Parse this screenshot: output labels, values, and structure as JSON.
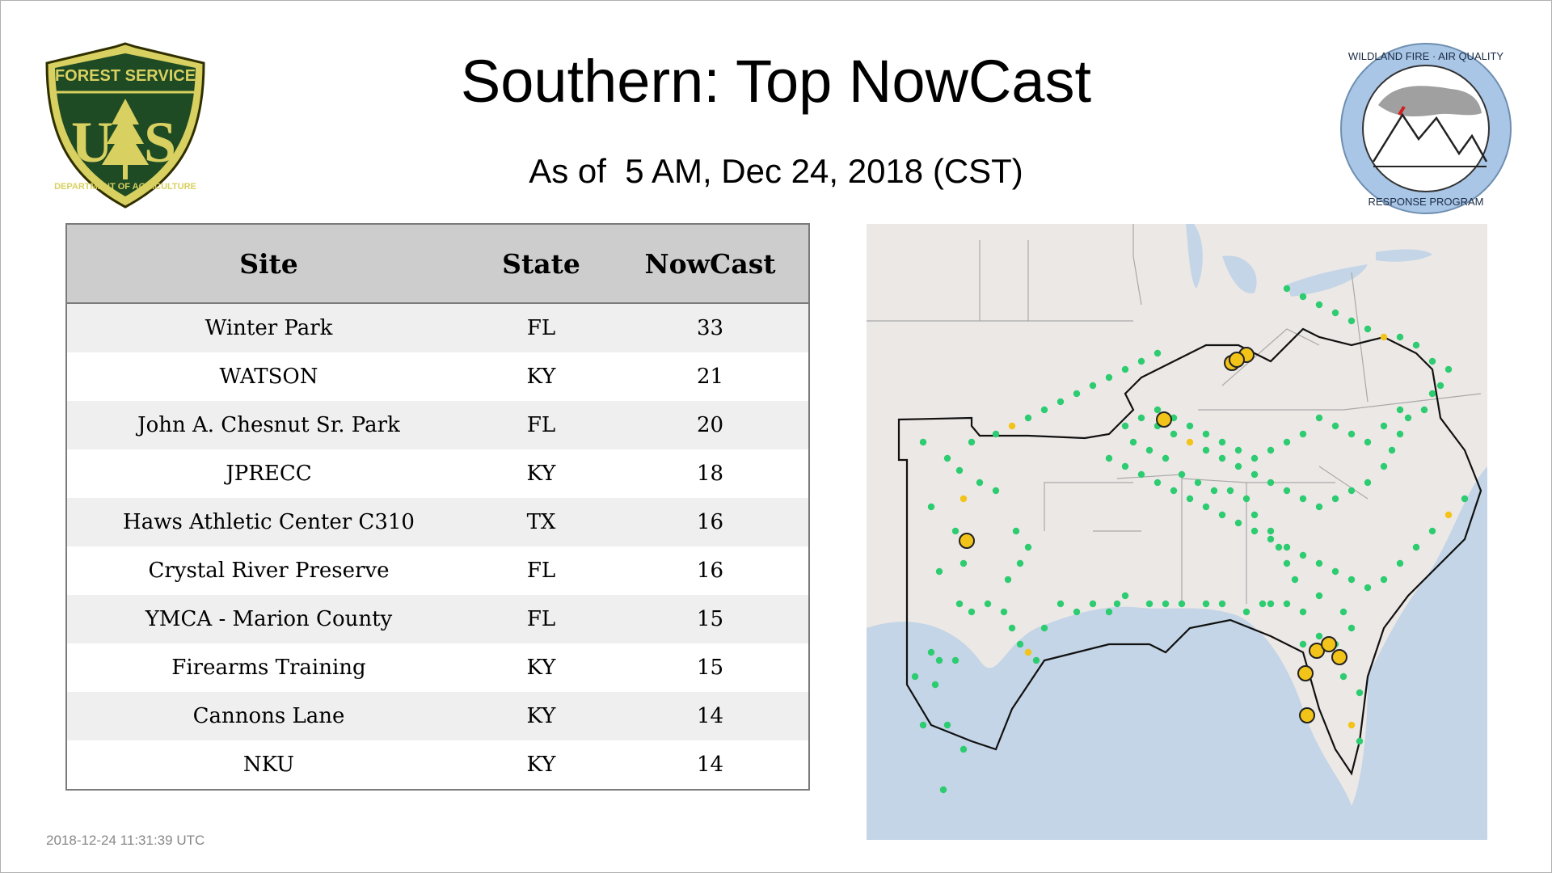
{
  "header": {
    "title": "Southern: Top NowCast",
    "subtitle": "As of  5 AM, Dec 24, 2018 (CST)"
  },
  "logos": {
    "left": {
      "name": "forest-service-shield",
      "text_top": "FOREST SERVICE",
      "text_mid": "U S",
      "text_bottom": "DEPARTMENT OF AGRICULTURE"
    },
    "right": {
      "name": "wildland-fire-air-quality-seal",
      "text_top": "WILDLAND FIRE · AIR QUALITY",
      "text_bottom": "RESPONSE PROGRAM"
    }
  },
  "table": {
    "columns": [
      "Site",
      "State",
      "NowCast"
    ],
    "rows": [
      {
        "site": "Winter Park",
        "state": "FL",
        "nowcast": "33"
      },
      {
        "site": "WATSON",
        "state": "KY",
        "nowcast": "21"
      },
      {
        "site": "John A. Chesnut Sr. Park",
        "state": "FL",
        "nowcast": "20"
      },
      {
        "site": "JPRECC",
        "state": "KY",
        "nowcast": "18"
      },
      {
        "site": "Haws Athletic Center C310",
        "state": "TX",
        "nowcast": "16"
      },
      {
        "site": "Crystal River Preserve",
        "state": "FL",
        "nowcast": "16"
      },
      {
        "site": "YMCA - Marion County",
        "state": "FL",
        "nowcast": "15"
      },
      {
        "site": "Firearms Training",
        "state": "KY",
        "nowcast": "15"
      },
      {
        "site": "Cannons Lane",
        "state": "KY",
        "nowcast": "14"
      },
      {
        "site": "NKU",
        "state": "KY",
        "nowcast": "14"
      }
    ]
  },
  "map": {
    "colors": {
      "land": "#ece8e6",
      "water": "#c3d5e6",
      "border": "#a9a9a9",
      "region": "#111111",
      "good": "#2ecc71",
      "moderate": "#f2c318"
    }
  },
  "footer": {
    "timestamp": "2018-12-24 11:31:39 UTC"
  }
}
